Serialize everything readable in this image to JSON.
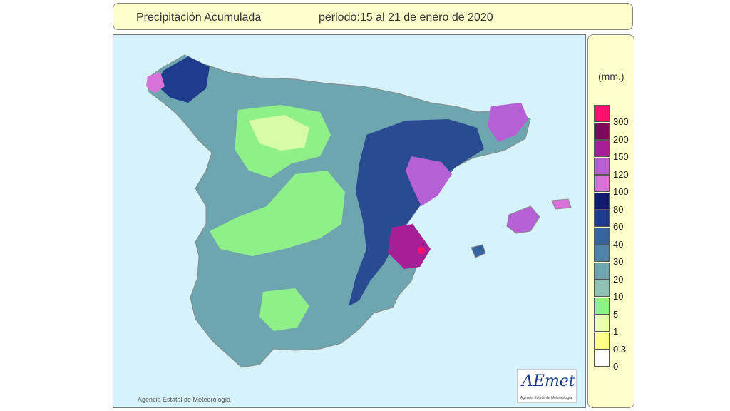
{
  "header": {
    "title": "Precipitación Acumulada",
    "period": "periodo:15 al 21 de enero de 2020"
  },
  "legend": {
    "unit": "(mm.)",
    "classes": [
      {
        "label": "300",
        "color": "#ff0f6e"
      },
      {
        "label": "200",
        "color": "#7a0b5a"
      },
      {
        "label": "150",
        "color": "#a61f96"
      },
      {
        "label": "120",
        "color": "#b660d6"
      },
      {
        "label": "100",
        "color": "#d872d8"
      },
      {
        "label": "80",
        "color": "#101a6e"
      },
      {
        "label": "60",
        "color": "#1f3b8c"
      },
      {
        "label": "40",
        "color": "#36649e"
      },
      {
        "label": "30",
        "color": "#4f84a8"
      },
      {
        "label": "20",
        "color": "#6ea6b0"
      },
      {
        "label": "10",
        "color": "#8fc4b4"
      },
      {
        "label": "5",
        "color": "#8ff08a"
      },
      {
        "label": "1",
        "color": "#e8ffb0"
      },
      {
        "label": "0.3",
        "color": "#ffff88"
      },
      {
        "label": "0",
        "color": "#ffffff"
      }
    ]
  },
  "map": {
    "sea_color": "#d6f2fa",
    "copyright": "Agencia Estatal de Meteorología",
    "logo_text": "AEmet",
    "logo_subtitle": "Agencia Estatal de Meteorología"
  }
}
